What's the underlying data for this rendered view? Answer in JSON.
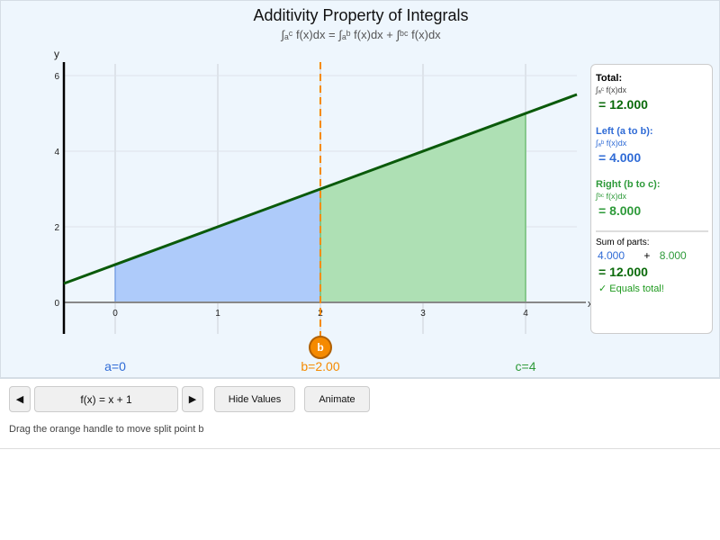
{
  "title": "Additivity Property of Integrals",
  "subtitle": "∫ₐᶜ f(x)dx = ∫ₐᵇ f(x)dx + ∫ᵇᶜ f(x)dx",
  "plot": {
    "x_label": "x",
    "y_label": "y",
    "x_ticks": [
      "0",
      "1",
      "2",
      "3",
      "4"
    ],
    "y_ticks": [
      "0",
      "2",
      "4",
      "6"
    ],
    "xlim": [
      -0.5,
      4.5
    ],
    "ylim": [
      -0.8,
      6.3
    ],
    "function": "x + 1",
    "a": 0,
    "b": 2,
    "c": 4,
    "colors": {
      "left": "#aecbfa",
      "right": "#aee0b4",
      "curve": "#0a5a0a",
      "split": "#f58a00"
    }
  },
  "handle_label": "b",
  "bounds": {
    "a": "a=0",
    "b": "b=2.00",
    "c": "c=4"
  },
  "panel": {
    "total_label": "Total:",
    "total_expr": "∫ₐᶜ f(x)dx",
    "total_value": "= 12.000",
    "left_label": "Left (a to b):",
    "left_expr": "∫ₐᵇ f(x)dx",
    "left_value": "= 4.000",
    "right_label": "Right (b to c):",
    "right_expr": "∫ᵇᶜ f(x)dx",
    "right_value": "= 8.000",
    "sum_label": "Sum of parts:",
    "sum_left": "4.000",
    "plus": "+",
    "sum_right": "8.000",
    "sum_value": "= 12.000",
    "check": "✓ Equals total!"
  },
  "controls": {
    "prev": "◀",
    "function": "f(x) = x + 1",
    "next": "▶",
    "hide": "Hide Values",
    "animate": "Animate",
    "hint": "Drag the orange handle to move split point b"
  }
}
